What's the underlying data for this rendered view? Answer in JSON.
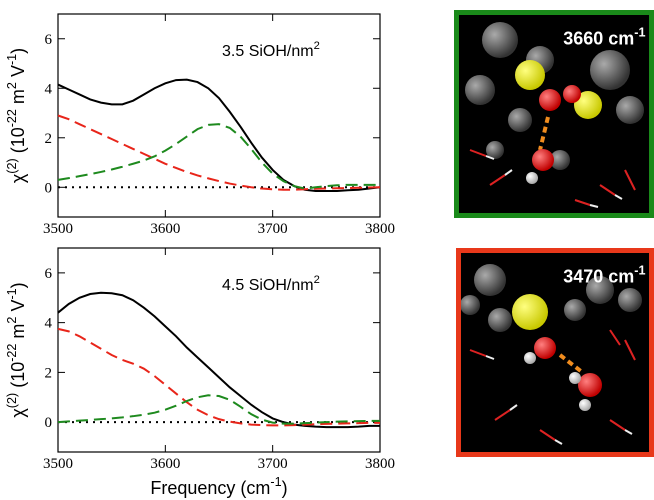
{
  "chart_data": [
    {
      "type": "line",
      "annotation": [
        "3.5 SiOH/nm",
        "2"
      ],
      "ylabel": [
        "χ",
        "(2)",
        " (10",
        "-22",
        " m",
        "2",
        " V",
        "-1",
        ")"
      ],
      "x": [
        3500,
        3510,
        3520,
        3530,
        3540,
        3550,
        3560,
        3570,
        3580,
        3590,
        3600,
        3610,
        3620,
        3630,
        3640,
        3650,
        3660,
        3670,
        3680,
        3690,
        3700,
        3710,
        3720,
        3730,
        3740,
        3750,
        3760,
        3770,
        3780,
        3790,
        3800
      ],
      "xlim": [
        3500,
        3800
      ],
      "xticks": [
        3500,
        3600,
        3700,
        3800
      ],
      "ylim": [
        -1.2,
        7
      ],
      "yticks": [
        0,
        2,
        4,
        6
      ],
      "series": [
        {
          "color": "#000000",
          "dash": "solid",
          "values": [
            4.15,
            3.95,
            3.75,
            3.55,
            3.42,
            3.35,
            3.35,
            3.5,
            3.75,
            4.0,
            4.2,
            4.33,
            4.35,
            4.25,
            4.0,
            3.6,
            3.05,
            2.45,
            1.8,
            1.2,
            0.7,
            0.3,
            0.05,
            -0.1,
            -0.15,
            -0.15,
            -0.15,
            -0.12,
            -0.1,
            -0.05,
            0.0
          ]
        },
        {
          "color": "#e8251a",
          "dash": "dashed",
          "values": [
            2.9,
            2.75,
            2.55,
            2.35,
            2.15,
            1.95,
            1.75,
            1.55,
            1.35,
            1.15,
            0.95,
            0.78,
            0.62,
            0.48,
            0.36,
            0.25,
            0.15,
            0.07,
            0.0,
            -0.05,
            -0.08,
            -0.1,
            -0.1,
            -0.08,
            -0.06,
            -0.05,
            -0.04,
            -0.03,
            -0.02,
            -0.01,
            0.0
          ]
        },
        {
          "color": "#1e8a1e",
          "dash": "dashed",
          "values": [
            0.3,
            0.37,
            0.45,
            0.53,
            0.62,
            0.72,
            0.83,
            0.95,
            1.08,
            1.25,
            1.48,
            1.75,
            2.05,
            2.35,
            2.52,
            2.55,
            2.4,
            2.05,
            1.55,
            1.0,
            0.55,
            0.25,
            0.05,
            -0.05,
            0.0,
            0.05,
            0.08,
            0.1,
            0.1,
            0.1,
            0.1
          ]
        }
      ]
    },
    {
      "type": "line",
      "annotation": [
        "4.5 SiOH/nm",
        "2"
      ],
      "ylabel": [
        "χ",
        "(2)",
        " (10",
        "-22",
        " m",
        "2",
        " V",
        "-1",
        ")"
      ],
      "xlabel": [
        "Frequency (cm",
        "-1",
        ")"
      ],
      "x": [
        3500,
        3510,
        3520,
        3530,
        3540,
        3550,
        3560,
        3570,
        3580,
        3590,
        3600,
        3610,
        3620,
        3630,
        3640,
        3650,
        3660,
        3670,
        3680,
        3690,
        3700,
        3710,
        3720,
        3730,
        3740,
        3750,
        3760,
        3770,
        3780,
        3790,
        3800
      ],
      "xlim": [
        3500,
        3800
      ],
      "xticks": [
        3500,
        3600,
        3700,
        3800
      ],
      "ylim": [
        -1.2,
        7
      ],
      "yticks": [
        0,
        2,
        4,
        6
      ],
      "series": [
        {
          "color": "#000000",
          "dash": "solid",
          "values": [
            4.4,
            4.75,
            5.0,
            5.15,
            5.2,
            5.18,
            5.1,
            4.9,
            4.6,
            4.25,
            3.85,
            3.45,
            3.0,
            2.6,
            2.2,
            1.8,
            1.4,
            1.05,
            0.7,
            0.4,
            0.15,
            0.0,
            -0.1,
            -0.15,
            -0.18,
            -0.2,
            -0.2,
            -0.2,
            -0.18,
            -0.15,
            -0.15
          ]
        },
        {
          "color": "#e8251a",
          "dash": "dashed",
          "values": [
            3.75,
            3.65,
            3.45,
            3.2,
            2.95,
            2.7,
            2.5,
            2.35,
            2.15,
            1.85,
            1.5,
            1.15,
            0.8,
            0.5,
            0.28,
            0.12,
            0.02,
            -0.05,
            -0.1,
            -0.12,
            -0.13,
            -0.13,
            -0.12,
            -0.1,
            -0.08,
            -0.07,
            -0.06,
            -0.05,
            -0.04,
            -0.03,
            -0.03
          ]
        },
        {
          "color": "#1e8a1e",
          "dash": "dashed",
          "values": [
            0.0,
            0.03,
            0.06,
            0.09,
            0.12,
            0.15,
            0.19,
            0.24,
            0.3,
            0.38,
            0.5,
            0.66,
            0.85,
            1.0,
            1.08,
            1.05,
            0.9,
            0.62,
            0.32,
            0.1,
            -0.02,
            -0.06,
            -0.06,
            -0.04,
            -0.02,
            0.0,
            0.02,
            0.03,
            0.04,
            0.05,
            0.05
          ]
        }
      ]
    }
  ],
  "images": [
    {
      "label": [
        "3660 cm",
        "-1"
      ],
      "border_color": "#1a8a1a"
    },
    {
      "label": [
        "3470 cm",
        "-1"
      ],
      "border_color": "#e8381a"
    }
  ]
}
